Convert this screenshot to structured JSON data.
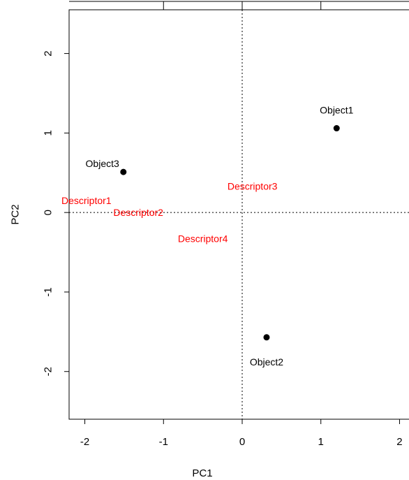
{
  "chart_data": {
    "type": "scatter",
    "title": "",
    "xlabel": "PC1",
    "ylabel": "PC2",
    "xlim": [
      -2.2,
      2.2
    ],
    "ylim": [
      -2.6,
      2.55
    ],
    "xticks": [
      -2,
      -1,
      0,
      1,
      2
    ],
    "yticks": [
      -2,
      -1,
      0,
      1,
      2
    ],
    "xtick_labels": [
      "-2",
      "-1",
      "0",
      "1",
      "2"
    ],
    "ytick_labels": [
      "-2",
      "-1",
      "0",
      "1",
      "2"
    ],
    "reference_lines": {
      "x": 0,
      "y": 0,
      "style": "dotted"
    },
    "grid": false,
    "top_axis_ticks": [
      -1,
      0,
      1
    ],
    "colors": {
      "objects": "#000000",
      "descriptors": "#ff0000"
    },
    "objects": [
      {
        "label": "Object1",
        "x": 1.2,
        "y": 1.06,
        "label_pos": "above"
      },
      {
        "label": "Object2",
        "x": 0.31,
        "y": -1.57,
        "label_pos": "below"
      },
      {
        "label": "Object3",
        "x": -1.51,
        "y": 0.51,
        "label_pos": "left"
      }
    ],
    "descriptors": [
      {
        "label": "Descriptor1",
        "x": -1.98,
        "y": 0.15
      },
      {
        "label": "Descriptor2",
        "x": -1.32,
        "y": 0.0
      },
      {
        "label": "Descriptor3",
        "x": 0.13,
        "y": 0.33
      },
      {
        "label": "Descriptor4",
        "x": -0.5,
        "y": -0.33
      }
    ]
  }
}
